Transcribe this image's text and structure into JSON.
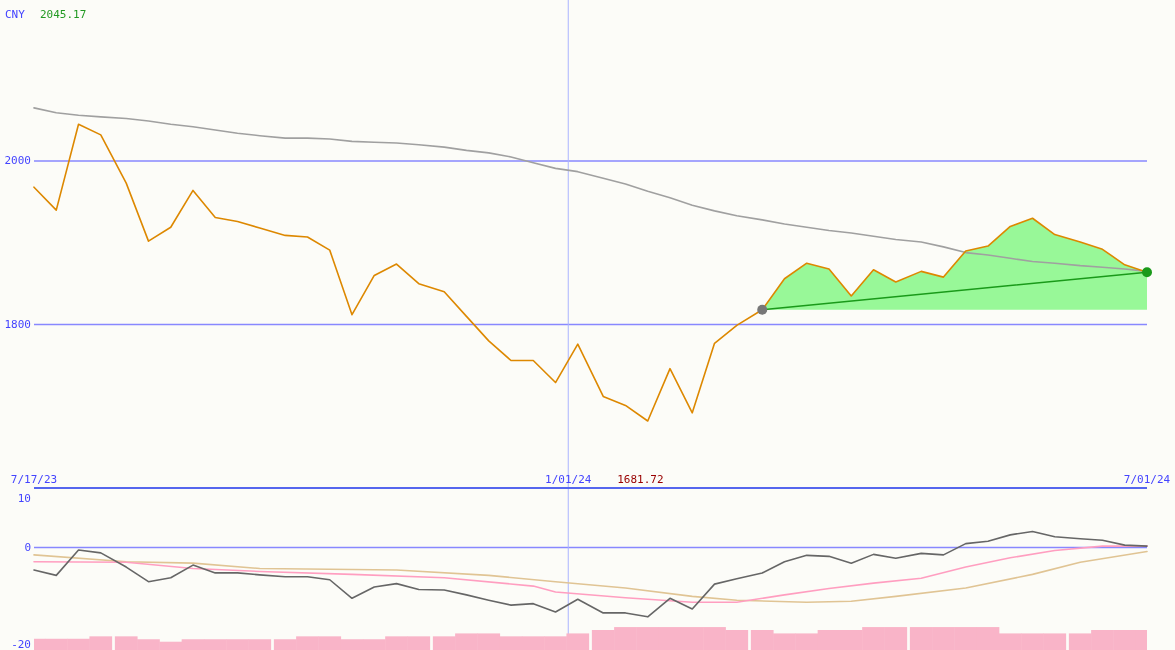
{
  "chart_data": [
    {
      "type": "line",
      "ylabel": "CNY",
      "annotations": [
        "2045.17",
        "1681.72"
      ],
      "x": [
        "2023-07-17",
        "2023-07-24",
        "2023-07-31",
        "2023-08-07",
        "2023-08-15",
        "2023-08-22",
        "2023-08-29",
        "2023-09-05",
        "2023-09-12",
        "2023-09-19",
        "2023-09-26",
        "2023-10-04",
        "2023-10-11",
        "2023-10-18",
        "2023-10-25",
        "2023-11-01",
        "2023-11-08",
        "2023-11-15",
        "2023-11-23",
        "2023-11-30",
        "2023-12-07",
        "2023-12-14",
        "2023-12-21",
        "2023-12-28",
        "2024-01-04",
        "2024-01-12",
        "2024-01-19",
        "2024-01-26",
        "2024-02-02",
        "2024-02-09",
        "2024-02-16",
        "2024-02-23",
        "2024-03-02",
        "2024-03-09",
        "2024-03-16",
        "2024-03-23",
        "2024-03-30",
        "2024-04-06",
        "2024-04-13",
        "2024-04-21",
        "2024-04-28",
        "2024-05-05",
        "2024-05-12",
        "2024-05-19",
        "2024-05-26",
        "2024-06-02",
        "2024-06-10",
        "2024-06-17",
        "2024-06-24",
        "2024-07-01"
      ],
      "xlim": [
        "2023-07-17",
        "2024-07-01"
      ],
      "xticks": [
        {
          "value": "2023-07-17",
          "label": "7/17/23"
        },
        {
          "value": "2024-01-01",
          "label": "1/01/24"
        },
        {
          "value": "2024-07-01",
          "label": "7/01/24"
        }
      ],
      "ylim": [
        1600,
        2197
      ],
      "yticks": [
        2000,
        1800
      ],
      "grid": "y",
      "ref_lines": [
        {
          "axis": "x",
          "value": "2024-01-01",
          "color": "#aab4ff"
        }
      ],
      "series": [
        {
          "color": "#a0a0a0",
          "values": [
            2065,
            2059,
            2056,
            2054,
            2052,
            2049,
            2045,
            2042,
            2038,
            2034,
            2031,
            2028,
            2028,
            2027,
            2024,
            2023,
            2022,
            2020,
            2017,
            2013,
            2010,
            2005,
            1998,
            1991,
            1987,
            1979,
            1972,
            1963,
            1955,
            1946,
            1939,
            1933,
            1928,
            1923,
            1919,
            1915,
            1912,
            1908,
            1904,
            1901,
            1895,
            1888,
            1885,
            1881,
            1877,
            1875,
            1872,
            1870,
            1868,
            1865
          ]
        },
        {
          "color": "#dd8800",
          "values": [
            1968,
            1940,
            2045,
            2032,
            1973,
            1902,
            1919,
            1964,
            1931,
            1926,
            1918,
            1909,
            1907,
            1891,
            1812,
            1860,
            1874,
            1850,
            1840,
            1810,
            1780,
            1756,
            1756,
            1729,
            1776,
            1712,
            1701,
            1682,
            1746,
            1692,
            1777,
            1799,
            1818,
            1856,
            1875,
            1868,
            1835,
            1867,
            1852,
            1865,
            1858,
            1890,
            1896,
            1920,
            1930,
            1910,
            1901,
            1892,
            1873,
            1864
          ],
          "lower": [
            null,
            null,
            null,
            null,
            null,
            null,
            null,
            null,
            null,
            null,
            null,
            null,
            null,
            null,
            null,
            null,
            null,
            null,
            null,
            null,
            null,
            null,
            null,
            null,
            null,
            null,
            null,
            null,
            null,
            null,
            null,
            null,
            1818,
            1818,
            1818,
            1818,
            1818,
            1818,
            1818,
            1818,
            1818,
            1818,
            1818,
            1818,
            1818,
            1818,
            1818,
            1818,
            1818,
            1818
          ],
          "upper": [
            null,
            null,
            null,
            null,
            null,
            null,
            null,
            null,
            null,
            null,
            null,
            null,
            null,
            null,
            null,
            null,
            null,
            null,
            null,
            null,
            null,
            null,
            null,
            null,
            null,
            null,
            null,
            null,
            null,
            null,
            null,
            null,
            1818,
            1856,
            1875,
            1868,
            1835,
            1867,
            1852,
            1865,
            1858,
            1890,
            1896,
            1920,
            1930,
            1910,
            1901,
            1892,
            1873,
            1864
          ]
        },
        {
          "color": "#1a9a1a",
          "x": [
            "2024-03-02",
            "2024-07-01"
          ],
          "values": [
            1818,
            1864
          ],
          "marker": "circle",
          "colors": [
            "#777777",
            "#1a9a1a"
          ]
        }
      ]
    },
    {
      "type": "line",
      "tick_labels": "y",
      "x": [
        "2023-07-17",
        "2023-07-24",
        "2023-07-31",
        "2023-08-07",
        "2023-08-15",
        "2023-08-22",
        "2023-08-29",
        "2023-09-05",
        "2023-09-12",
        "2023-09-19",
        "2023-09-26",
        "2023-10-04",
        "2023-10-11",
        "2023-10-18",
        "2023-10-25",
        "2023-11-01",
        "2023-11-08",
        "2023-11-15",
        "2023-11-23",
        "2023-11-30",
        "2023-12-07",
        "2023-12-14",
        "2023-12-21",
        "2023-12-28",
        "2024-01-04",
        "2024-01-12",
        "2024-01-19",
        "2024-01-26",
        "2024-02-02",
        "2024-02-09",
        "2024-02-16",
        "2024-02-23",
        "2024-03-02",
        "2024-03-09",
        "2024-03-16",
        "2024-03-23",
        "2024-03-30",
        "2024-04-06",
        "2024-04-13",
        "2024-04-21",
        "2024-04-28",
        "2024-05-05",
        "2024-05-12",
        "2024-05-19",
        "2024-05-26",
        "2024-06-02",
        "2024-06-10",
        "2024-06-17",
        "2024-06-24",
        "2024-07-01"
      ],
      "xlim": [
        "2023-07-17",
        "2024-07-01"
      ],
      "ylim": [
        -21,
        12
      ],
      "yticks": [
        10,
        0,
        -20
      ],
      "ref_lines": [
        {
          "axis": "y",
          "value": 0,
          "color": "#8888ff"
        },
        {
          "axis": "x",
          "value": "2024-01-01",
          "color": "#aab4ff"
        }
      ],
      "series": [
        {
          "type": "bar",
          "color": "#f9b4c8",
          "base": [
            -21,
            -21,
            -21,
            -21,
            -21,
            -21,
            -21,
            -21,
            -21,
            -21,
            -21,
            -21,
            -21,
            -21,
            -21,
            -21,
            -21,
            -21,
            -21,
            -21,
            -21,
            -21,
            -21,
            -21,
            -21,
            -21,
            -21,
            -21,
            -21,
            -21,
            -21,
            -21,
            -21,
            -21,
            -21,
            -21,
            -21,
            -21,
            -21,
            -21,
            -21,
            -21,
            -21,
            -21,
            -21,
            -21,
            -21,
            -21,
            -21,
            -21
          ],
          "values": [
            2.3,
            2.3,
            2.3,
            2.8,
            2.8,
            2.2,
            1.7,
            2.2,
            2.2,
            2.2,
            2.2,
            2.2,
            2.8,
            2.8,
            2.2,
            2.2,
            2.8,
            2.8,
            2.8,
            3.4,
            3.4,
            2.8,
            2.8,
            2.8,
            3.4,
            4.1,
            4.7,
            4.7,
            4.7,
            4.7,
            4.7,
            4.1,
            4.1,
            3.4,
            3.4,
            4.1,
            4.1,
            4.7,
            4.7,
            4.7,
            4.7,
            4.7,
            4.7,
            3.4,
            3.4,
            3.4,
            3.4,
            4.1,
            4.1,
            4.1
          ]
        },
        {
          "color": "#e0c494",
          "x": [
            "2023-07-17",
            "2023-08-15",
            "2023-09-05",
            "2023-09-26",
            "2023-10-25",
            "2023-11-08",
            "2023-12-07",
            "2023-12-28",
            "2024-01-19",
            "2024-02-09",
            "2024-02-23",
            "2024-03-16",
            "2024-03-30",
            "2024-04-13",
            "2024-05-05",
            "2024-05-26",
            "2024-06-10",
            "2024-07-01"
          ],
          "values": [
            -1.5,
            -2.9,
            -3.2,
            -4.3,
            -4.5,
            -4.6,
            -5.7,
            -7.0,
            -8.3,
            -10.0,
            -10.8,
            -11.2,
            -11.0,
            -10.0,
            -8.3,
            -5.5,
            -3.0,
            -0.8
          ]
        },
        {
          "color": "#ff9ec0",
          "x": [
            "2023-07-17",
            "2023-08-15",
            "2023-09-05",
            "2023-09-26",
            "2023-10-25",
            "2023-11-23",
            "2023-12-21",
            "2023-12-28",
            "2024-01-19",
            "2024-02-09",
            "2024-02-23",
            "2024-03-09",
            "2024-03-23",
            "2024-04-06",
            "2024-04-21",
            "2024-05-05",
            "2024-05-19",
            "2024-06-02",
            "2024-06-17",
            "2024-07-01"
          ],
          "values": [
            -2.9,
            -3.0,
            -4.3,
            -4.9,
            -5.5,
            -6.2,
            -7.9,
            -9.1,
            -10.3,
            -11.2,
            -11.2,
            -9.7,
            -8.4,
            -7.3,
            -6.3,
            -4.0,
            -2.1,
            -0.6,
            0.3,
            0.3
          ]
        },
        {
          "color": "#666666",
          "values": [
            -4.6,
            -5.7,
            -0.5,
            -1.1,
            -4.0,
            -7.0,
            -6.2,
            -3.6,
            -5.2,
            -5.2,
            -5.6,
            -6.0,
            -6.0,
            -6.6,
            -10.4,
            -8.1,
            -7.4,
            -8.6,
            -8.7,
            -9.7,
            -10.8,
            -11.8,
            -11.5,
            -13.2,
            -10.6,
            -13.4,
            -13.4,
            -14.2,
            -10.4,
            -12.6,
            -7.5,
            -6.4,
            -5.2,
            -2.9,
            -1.6,
            -1.8,
            -3.2,
            -1.4,
            -2.2,
            -1.2,
            -1.5,
            0.8,
            1.3,
            2.6,
            3.3,
            2.2,
            1.8,
            1.5,
            0.5,
            0.3
          ]
        }
      ]
    }
  ]
}
